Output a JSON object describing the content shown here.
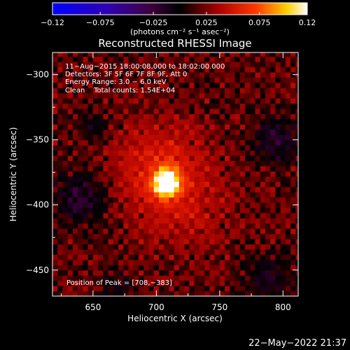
{
  "chart_data": {
    "type": "heatmap",
    "title": "Reconstructed RHESSI Image",
    "xlabel": "Heliocentric X (arcsec)",
    "ylabel": "Heliocentric Y (arcsec)",
    "xlim": [
      618,
      812
    ],
    "ylim": [
      -470,
      -283
    ],
    "xticks": [
      650,
      700,
      750,
      800
    ],
    "yticks": [
      -450,
      -400,
      -350,
      -300
    ],
    "colorbar": {
      "units": "(photons cm⁻² s⁻¹ asec⁻²)",
      "range": [
        -0.12,
        0.12
      ],
      "tick_values": [
        -0.12,
        -0.075,
        -0.025,
        0.025,
        0.075,
        0.12
      ],
      "tick_labels": [
        "−0.12",
        "−0.075",
        "−0.025",
        "0.025",
        "0.075",
        "0.12"
      ]
    },
    "annotations": [
      "11−Aug−2015 18:00:08.000 to 18:02:00.000",
      "Detectors: 3F 5F 6F 7F 8F 9F, Att 0",
      "Energy Range: 3.0 − 6.0 keV",
      "Clean    Total counts: 1.54E+04"
    ],
    "peak_label": "Position of Peak = [708,−383]",
    "peak": {
      "x": 708,
      "y": -383,
      "value": 0.12
    },
    "sources": [
      {
        "x": 708,
        "y": -383,
        "sigma": 7,
        "amp": 0.12
      },
      {
        "x": 700,
        "y": -368,
        "sigma": 22,
        "amp": 0.03
      },
      {
        "x": 718,
        "y": -395,
        "sigma": 26,
        "amp": 0.022
      }
    ],
    "negative_regions": [
      {
        "x": 640,
        "y": -395,
        "sigma": 14,
        "amp": -0.03
      },
      {
        "x": 795,
        "y": -350,
        "sigma": 12,
        "amp": -0.028
      },
      {
        "x": 790,
        "y": -455,
        "sigma": 12,
        "amp": -0.024
      },
      {
        "x": 668,
        "y": -462,
        "sigma": 9,
        "amp": -0.018
      },
      {
        "x": 652,
        "y": -340,
        "sigma": 8,
        "amp": -0.014
      }
    ]
  },
  "footer": {
    "timestamp": "22−May−2022 21:37"
  }
}
